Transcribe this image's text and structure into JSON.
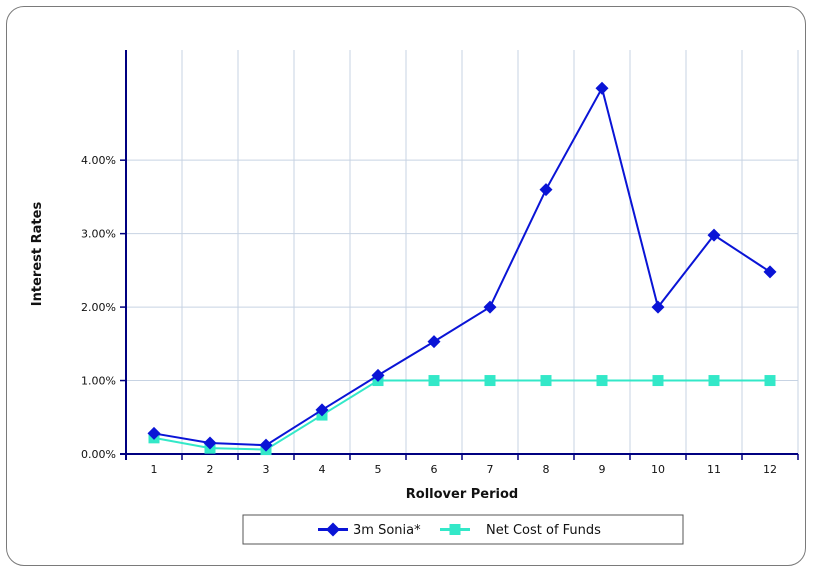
{
  "chart_data": {
    "type": "line",
    "xlabel": "Rollover Period",
    "ylabel": "Interest Rates",
    "x": [
      1,
      2,
      3,
      4,
      5,
      6,
      7,
      8,
      9,
      10,
      11,
      12
    ],
    "ylim": [
      0,
      5.5
    ],
    "yticks": [
      0,
      1,
      2,
      3,
      4
    ],
    "ytick_labels": [
      "0.00%",
      "1.00%",
      "2.00%",
      "3.00%",
      "4.00%"
    ],
    "grid": true,
    "legend_position": "bottom",
    "series": [
      {
        "name": "3m Sonia*",
        "color": "#0a14d6",
        "marker": "diamond",
        "values": [
          0.28,
          0.15,
          0.12,
          0.6,
          1.07,
          1.53,
          2.0,
          3.6,
          4.98,
          2.0,
          2.98,
          2.48
        ]
      },
      {
        "name": "Net Cost of Funds",
        "color": "#33e8c8",
        "marker": "square",
        "values": [
          0.22,
          0.08,
          0.06,
          0.53,
          1.0,
          1.0,
          1.0,
          1.0,
          1.0,
          1.0,
          1.0,
          1.0
        ]
      }
    ]
  }
}
